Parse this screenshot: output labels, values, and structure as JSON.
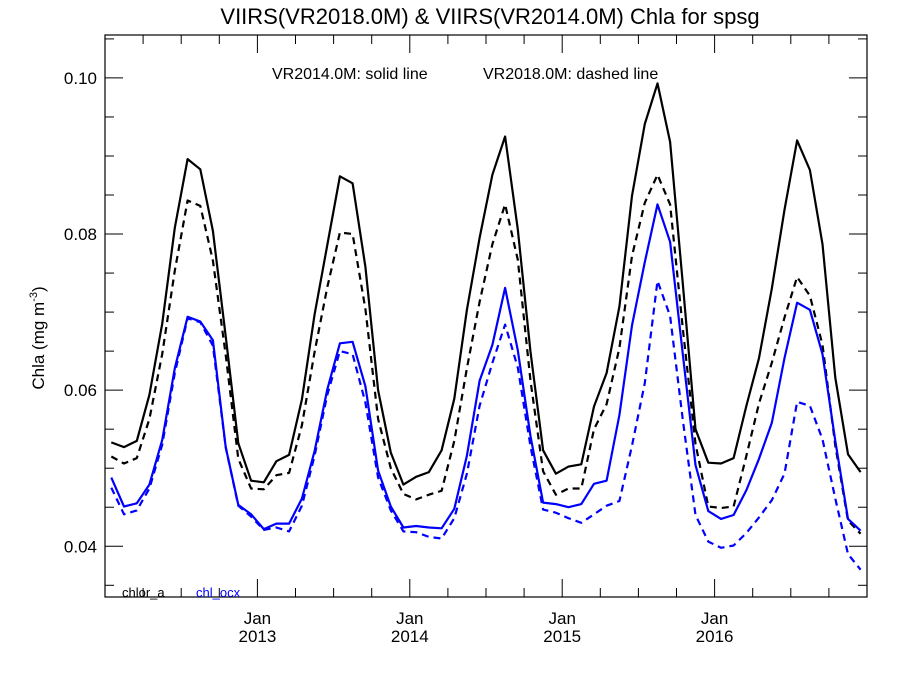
{
  "chart_data": {
    "type": "line",
    "title": "VIIRS(VR2018.0M) & VIIRS(VR2014.0M)  Chla for spsg",
    "annotation_solid": "VR2014.0M: solid line",
    "annotation_dashed": "VR2018.0M: dashed line",
    "ylabel": "Chla (mg m",
    "ylabel_sup": "-3",
    "ylabel_close": ")",
    "ylim": [
      0.0335,
      0.1055
    ],
    "yticks": [
      "0.04",
      "0.06",
      "0.08",
      "0.10"
    ],
    "xlim": [
      "2012-01",
      "2016-12"
    ],
    "xticks": [
      {
        "month": "Jan",
        "year": "2013"
      },
      {
        "month": "Jan",
        "year": "2014"
      },
      {
        "month": "Jan",
        "year": "2015"
      },
      {
        "month": "Jan",
        "year": "2016"
      }
    ],
    "legend": [
      {
        "label": "chlor_a",
        "color": "#000000"
      },
      {
        "label": "chl_ocx",
        "color": "#0000ff"
      }
    ],
    "x": [
      "2012-01",
      "2012-02",
      "2012-03",
      "2012-04",
      "2012-05",
      "2012-06",
      "2012-07",
      "2012-08",
      "2012-09",
      "2012-10",
      "2012-11",
      "2012-12",
      "2013-01",
      "2013-02",
      "2013-03",
      "2013-04",
      "2013-05",
      "2013-06",
      "2013-07",
      "2013-08",
      "2013-09",
      "2013-10",
      "2013-11",
      "2013-12",
      "2014-01",
      "2014-02",
      "2014-03",
      "2014-04",
      "2014-05",
      "2014-06",
      "2014-07",
      "2014-08",
      "2014-09",
      "2014-10",
      "2014-11",
      "2014-12",
      "2015-01",
      "2015-02",
      "2015-03",
      "2015-04",
      "2015-05",
      "2015-06",
      "2015-07",
      "2015-08",
      "2015-09",
      "2015-10",
      "2015-11",
      "2015-12",
      "2016-01",
      "2016-02",
      "2016-03",
      "2016-04",
      "2016-05",
      "2016-06",
      "2016-07",
      "2016-08",
      "2016-09",
      "2016-10",
      "2016-11",
      "2016-12"
    ],
    "series": [
      {
        "product": "chlor_a",
        "version": "VR2014.0M",
        "color": "#000000",
        "style": "solid",
        "values": [
          0.0533,
          0.0527,
          0.0535,
          0.0594,
          0.0685,
          0.0808,
          0.0896,
          0.0883,
          0.0804,
          0.0669,
          0.0532,
          0.0484,
          0.0482,
          0.0509,
          0.0517,
          0.0588,
          0.0697,
          0.0786,
          0.0874,
          0.0865,
          0.0758,
          0.06,
          0.052,
          0.0479,
          0.0489,
          0.0495,
          0.0523,
          0.0589,
          0.0703,
          0.0795,
          0.0876,
          0.0925,
          0.0806,
          0.0649,
          0.0523,
          0.0493,
          0.0502,
          0.0505,
          0.0579,
          0.0622,
          0.0707,
          0.0849,
          0.0941,
          0.0993,
          0.0918,
          0.0735,
          0.055,
          0.0507,
          0.0506,
          0.0513,
          0.058,
          0.0641,
          0.073,
          0.0831,
          0.092,
          0.0882,
          0.0787,
          0.0616,
          0.0518,
          0.0495
        ]
      },
      {
        "product": "chlor_a",
        "version": "VR2018.0M",
        "color": "#000000",
        "style": "dashed",
        "values": [
          0.0515,
          0.0506,
          0.0513,
          0.0563,
          0.0646,
          0.0753,
          0.0843,
          0.0836,
          0.0766,
          0.0645,
          0.0512,
          0.0474,
          0.0473,
          0.0491,
          0.0494,
          0.0555,
          0.0649,
          0.0732,
          0.0802,
          0.08,
          0.0704,
          0.0563,
          0.05,
          0.0467,
          0.046,
          0.0466,
          0.0471,
          0.0535,
          0.0628,
          0.0713,
          0.0787,
          0.0838,
          0.0767,
          0.0612,
          0.0496,
          0.0466,
          0.0474,
          0.0474,
          0.055,
          0.0582,
          0.0654,
          0.0772,
          0.084,
          0.0876,
          0.0838,
          0.0678,
          0.0531,
          0.0451,
          0.0449,
          0.0451,
          0.0516,
          0.0583,
          0.0635,
          0.0693,
          0.0745,
          0.0721,
          0.0658,
          0.0529,
          0.0433,
          0.0416
        ]
      },
      {
        "product": "chl_ocx",
        "version": "VR2014.0M",
        "color": "#0000ff",
        "style": "solid",
        "values": [
          0.0488,
          0.0451,
          0.0455,
          0.0479,
          0.0536,
          0.0628,
          0.0694,
          0.0688,
          0.0664,
          0.0527,
          0.0453,
          0.0441,
          0.0422,
          0.0429,
          0.0429,
          0.0461,
          0.0522,
          0.0601,
          0.066,
          0.0662,
          0.0605,
          0.0497,
          0.0451,
          0.0424,
          0.0426,
          0.0424,
          0.0423,
          0.0448,
          0.0516,
          0.0612,
          0.0658,
          0.0731,
          0.0651,
          0.0541,
          0.0456,
          0.0454,
          0.045,
          0.0454,
          0.048,
          0.0484,
          0.0568,
          0.0683,
          0.0764,
          0.0838,
          0.079,
          0.0645,
          0.0504,
          0.0445,
          0.0435,
          0.044,
          0.0472,
          0.0512,
          0.0558,
          0.0641,
          0.0712,
          0.0703,
          0.0646,
          0.0535,
          0.0435,
          0.042
        ]
      },
      {
        "product": "chl_ocx",
        "version": "VR2018.0M",
        "color": "#0000ff",
        "style": "dashed",
        "values": [
          0.0475,
          0.0441,
          0.0446,
          0.0474,
          0.053,
          0.0622,
          0.0692,
          0.0687,
          0.0657,
          0.0527,
          0.0452,
          0.0438,
          0.0421,
          0.0424,
          0.0419,
          0.0452,
          0.0516,
          0.0594,
          0.065,
          0.0646,
          0.0584,
          0.0488,
          0.0446,
          0.0419,
          0.0418,
          0.0412,
          0.041,
          0.0436,
          0.0493,
          0.058,
          0.0635,
          0.0684,
          0.0629,
          0.0528,
          0.0447,
          0.0443,
          0.0436,
          0.043,
          0.0441,
          0.0452,
          0.0458,
          0.0529,
          0.0609,
          0.074,
          0.0695,
          0.0561,
          0.044,
          0.0406,
          0.0398,
          0.0401,
          0.0417,
          0.0437,
          0.0459,
          0.0493,
          0.0585,
          0.058,
          0.0537,
          0.0461,
          0.039,
          0.037
        ]
      }
    ]
  }
}
